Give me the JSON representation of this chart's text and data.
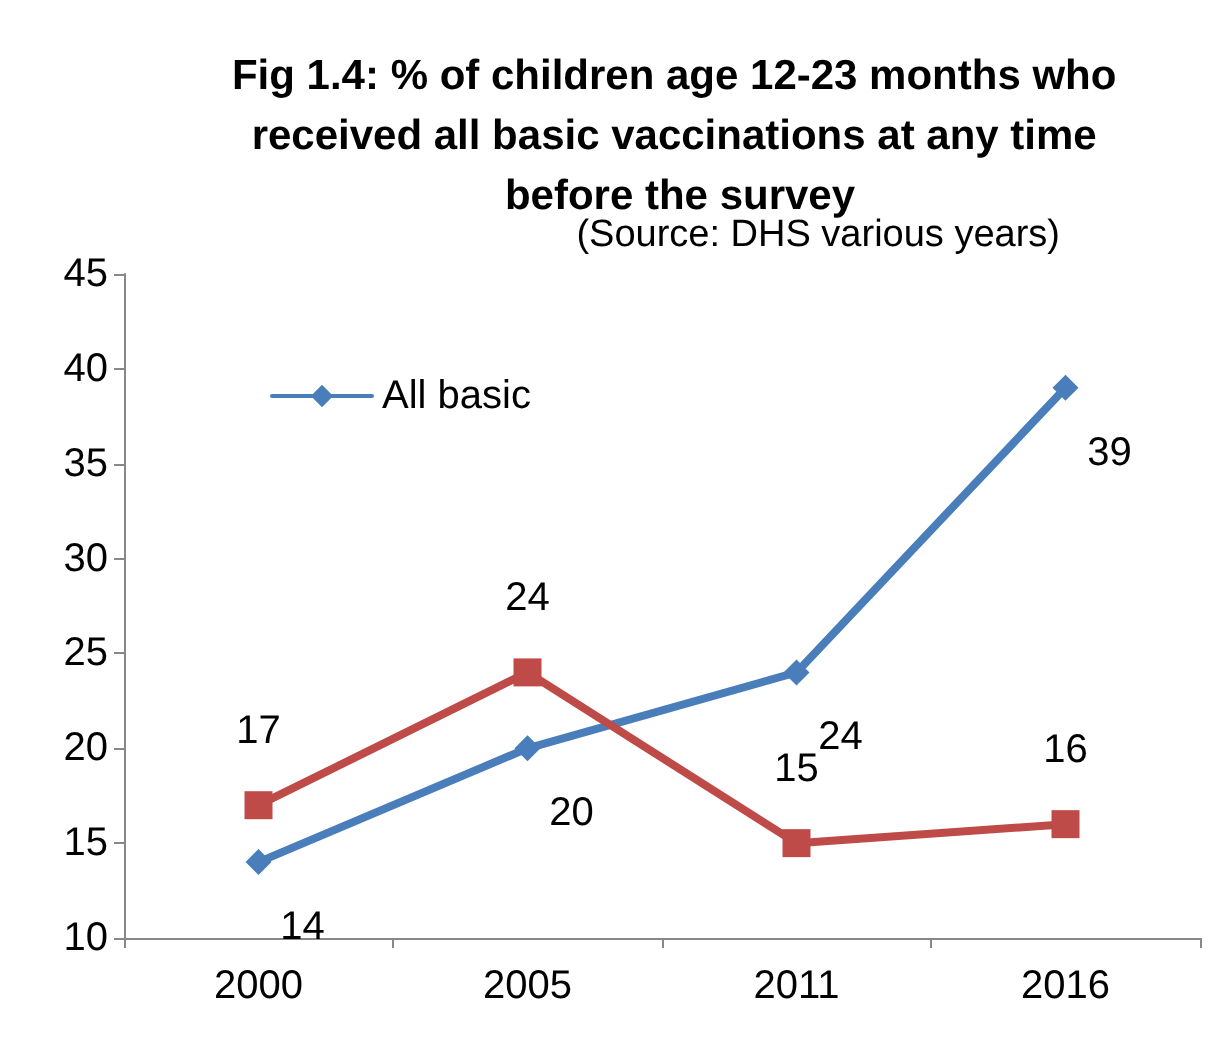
{
  "chart_data": {
    "type": "line",
    "title": "Fig 1.4: % of children age 12-23 months who received all basic vaccinations at any time before the survey",
    "annotations": [
      "(Source: DHS various years)"
    ],
    "categories": [
      "2000",
      "2005",
      "2011",
      "2016"
    ],
    "series": [
      {
        "name": "All basic",
        "color": "#4a7ebb",
        "marker": "diamond",
        "values": [
          14,
          20,
          24,
          39
        ]
      },
      {
        "color": "#be4b48",
        "marker": "square",
        "values": [
          17,
          24,
          15,
          16
        ]
      }
    ],
    "ylim": [
      10,
      45
    ],
    "yticks": [
      10,
      15,
      20,
      25,
      30,
      35,
      40,
      45
    ],
    "grid": false,
    "legend": "top left",
    "data_labels": true,
    "line_style": "solid"
  }
}
